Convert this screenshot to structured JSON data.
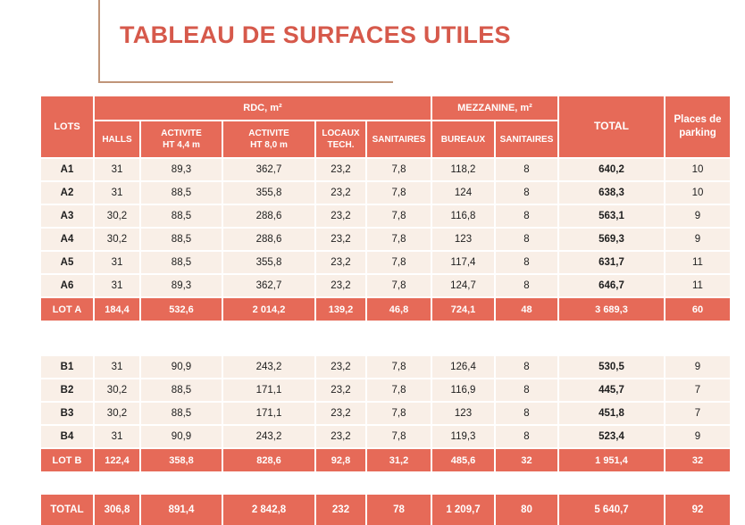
{
  "title": "TABLEAU DE SURFACES UTILES",
  "colors": {
    "coral": "#e66a58",
    "row_bg": "#f9efe7",
    "title_red": "#d6594b",
    "rule": "#c09579",
    "text": "#1e1e1e"
  },
  "table": {
    "headers": {
      "lots": "LOTS",
      "rdc_group": "RDC, m²",
      "mezzanine_group": "MEZZANINE, m²",
      "total": "TOTAL",
      "parking": "Places de\nparking",
      "rdc_cols": [
        "HALLS",
        "ACTIVITE\nHT 4,4 m",
        "ACTIVITE\nHT 8,0 m",
        "LOCAUX\nTECH.",
        "SANITAIRES"
      ],
      "mezzanine_cols": [
        "BUREAUX",
        "SANITAIRES"
      ]
    },
    "sections": [
      {
        "rows": [
          {
            "lot": "A1",
            "values": [
              "31",
              "89,3",
              "362,7",
              "23,2",
              "7,8",
              "118,2",
              "8",
              "640,2",
              "10"
            ]
          },
          {
            "lot": "A2",
            "values": [
              "31",
              "88,5",
              "355,8",
              "23,2",
              "7,8",
              "124",
              "8",
              "638,3",
              "10"
            ]
          },
          {
            "lot": "A3",
            "values": [
              "30,2",
              "88,5",
              "288,6",
              "23,2",
              "7,8",
              "116,8",
              "8",
              "563,1",
              "9"
            ]
          },
          {
            "lot": "A4",
            "values": [
              "30,2",
              "88,5",
              "288,6",
              "23,2",
              "7,8",
              "123",
              "8",
              "569,3",
              "9"
            ]
          },
          {
            "lot": "A5",
            "values": [
              "31",
              "88,5",
              "355,8",
              "23,2",
              "7,8",
              "117,4",
              "8",
              "631,7",
              "11"
            ]
          },
          {
            "lot": "A6",
            "values": [
              "31",
              "89,3",
              "362,7",
              "23,2",
              "7,8",
              "124,7",
              "8",
              "646,7",
              "11"
            ]
          }
        ],
        "summary": {
          "lot": "LOT A",
          "values": [
            "184,4",
            "532,6",
            "2 014,2",
            "139,2",
            "46,8",
            "724,1",
            "48",
            "3 689,3",
            "60"
          ]
        }
      },
      {
        "rows": [
          {
            "lot": "B1",
            "values": [
              "31",
              "90,9",
              "243,2",
              "23,2",
              "7,8",
              "126,4",
              "8",
              "530,5",
              "9"
            ]
          },
          {
            "lot": "B2",
            "values": [
              "30,2",
              "88,5",
              "171,1",
              "23,2",
              "7,8",
              "116,9",
              "8",
              "445,7",
              "7"
            ]
          },
          {
            "lot": "B3",
            "values": [
              "30,2",
              "88,5",
              "171,1",
              "23,2",
              "7,8",
              "123",
              "8",
              "451,8",
              "7"
            ]
          },
          {
            "lot": "B4",
            "values": [
              "31",
              "90,9",
              "243,2",
              "23,2",
              "7,8",
              "119,3",
              "8",
              "523,4",
              "9"
            ]
          }
        ],
        "summary": {
          "lot": "LOT B",
          "values": [
            "122,4",
            "358,8",
            "828,6",
            "92,8",
            "31,2",
            "485,6",
            "32",
            "1 951,4",
            "32"
          ]
        }
      }
    ],
    "grand_total": {
      "lot": "TOTAL",
      "values": [
        "306,8",
        "891,4",
        "2 842,8",
        "232",
        "78",
        "1 209,7",
        "80",
        "5 640,7",
        "92"
      ]
    }
  }
}
